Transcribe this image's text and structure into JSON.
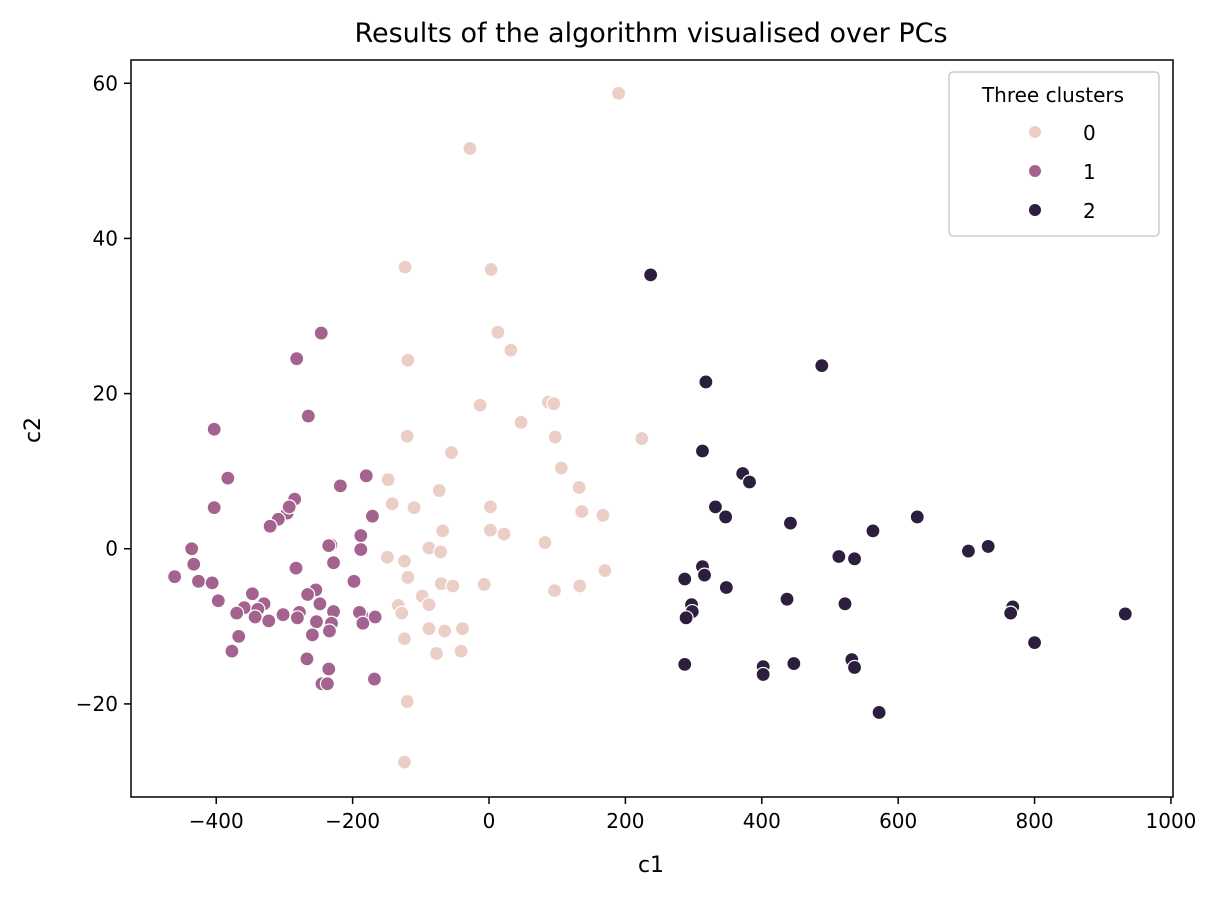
{
  "chart_data": {
    "type": "scatter",
    "title": "Results of the algorithm visualised over PCs",
    "xlabel": "c1",
    "ylabel": "c2",
    "xlim": [
      -525,
      1003
    ],
    "ylim": [
      -32,
      63
    ],
    "xticks": [
      -400,
      -200,
      0,
      200,
      400,
      600,
      800,
      1000
    ],
    "xtick_labels": [
      "−400",
      "−200",
      "0",
      "200",
      "400",
      "600",
      "800",
      "1000"
    ],
    "yticks": [
      -20,
      0,
      20,
      40,
      60
    ],
    "ytick_labels": [
      "−20",
      "0",
      "20",
      "40",
      "60"
    ],
    "grid": false,
    "legend": {
      "title": "Three clusters",
      "placement": "top-right"
    },
    "series": [
      {
        "name": "0",
        "color": "#ebcfc6",
        "points": [
          [
            190,
            58.7
          ],
          [
            -28,
            51.6
          ],
          [
            -123,
            36.3
          ],
          [
            3,
            36
          ],
          [
            13,
            27.9
          ],
          [
            32,
            25.6
          ],
          [
            -119,
            24.3
          ],
          [
            -13,
            18.5
          ],
          [
            87,
            18.9
          ],
          [
            95,
            18.7
          ],
          [
            47,
            16.3
          ],
          [
            -120,
            14.5
          ],
          [
            97,
            14.4
          ],
          [
            224,
            14.2
          ],
          [
            -55,
            12.4
          ],
          [
            106,
            10.4
          ],
          [
            -148,
            8.9
          ],
          [
            -73,
            7.5
          ],
          [
            132,
            7.9
          ],
          [
            -142,
            5.8
          ],
          [
            -110,
            5.3
          ],
          [
            2,
            5.4
          ],
          [
            136,
            4.8
          ],
          [
            167,
            4.3
          ],
          [
            -68,
            2.3
          ],
          [
            2,
            2.4
          ],
          [
            22,
            1.9
          ],
          [
            82,
            0.8
          ],
          [
            -88,
            0.1
          ],
          [
            -71,
            -0.4
          ],
          [
            -149,
            -1.1
          ],
          [
            -124,
            -1.6
          ],
          [
            170,
            -2.8
          ],
          [
            -119,
            -3.7
          ],
          [
            -70,
            -4.5
          ],
          [
            -53,
            -4.8
          ],
          [
            -7,
            -4.6
          ],
          [
            133,
            -4.8
          ],
          [
            96,
            -5.4
          ],
          [
            -98,
            -6.1
          ],
          [
            -88,
            -7.2
          ],
          [
            -133,
            -7.3
          ],
          [
            -128,
            -8.3
          ],
          [
            -88,
            -10.3
          ],
          [
            -65,
            -10.6
          ],
          [
            -39,
            -10.3
          ],
          [
            -124,
            -11.6
          ],
          [
            -77,
            -13.5
          ],
          [
            -41,
            -13.2
          ],
          [
            -120,
            -19.7
          ],
          [
            -124,
            -27.5
          ]
        ]
      },
      {
        "name": "1",
        "color": "#a4628f",
        "points": [
          [
            -246,
            27.8
          ],
          [
            -282,
            24.5
          ],
          [
            -265,
            17.1
          ],
          [
            -403,
            15.4
          ],
          [
            -383,
            9.1
          ],
          [
            -180,
            9.4
          ],
          [
            -218,
            8.1
          ],
          [
            -285,
            6.4
          ],
          [
            -403,
            5.3
          ],
          [
            -296,
            4.6
          ],
          [
            -171,
            4.2
          ],
          [
            -293,
            5.4
          ],
          [
            -309,
            3.8
          ],
          [
            -321,
            2.9
          ],
          [
            -232,
            0.5
          ],
          [
            -436,
            0.0
          ],
          [
            -235,
            0.4
          ],
          [
            -188,
            1.7
          ],
          [
            -188,
            -0.1
          ],
          [
            -433,
            -2.0
          ],
          [
            -228,
            -1.8
          ],
          [
            -283,
            -2.5
          ],
          [
            -461,
            -3.6
          ],
          [
            -426,
            -4.2
          ],
          [
            -406,
            -4.4
          ],
          [
            -198,
            -4.2
          ],
          [
            -254,
            -5.3
          ],
          [
            -266,
            -5.9
          ],
          [
            -347,
            -5.8
          ],
          [
            -359,
            -7.6
          ],
          [
            -397,
            -6.7
          ],
          [
            -330,
            -7.1
          ],
          [
            -248,
            -7.1
          ],
          [
            -370,
            -8.3
          ],
          [
            -339,
            -7.8
          ],
          [
            -343,
            -8.8
          ],
          [
            -302,
            -8.5
          ],
          [
            -278,
            -8.2
          ],
          [
            -281,
            -8.9
          ],
          [
            -228,
            -8.1
          ],
          [
            -253,
            -9.4
          ],
          [
            -186,
            -8.7
          ],
          [
            -190,
            -8.2
          ],
          [
            -185,
            -9.6
          ],
          [
            -167,
            -8.8
          ],
          [
            -231,
            -9.6
          ],
          [
            -323,
            -9.3
          ],
          [
            -259,
            -11.1
          ],
          [
            -234,
            -10.6
          ],
          [
            -367,
            -11.3
          ],
          [
            -377,
            -13.2
          ],
          [
            -267,
            -14.2
          ],
          [
            -235,
            -15.5
          ],
          [
            -168,
            -16.8
          ],
          [
            -245,
            -17.4
          ],
          [
            -237,
            -17.4
          ]
        ]
      },
      {
        "name": "2",
        "color": "#2c1e3d",
        "points": [
          [
            237,
            35.3
          ],
          [
            488,
            23.6
          ],
          [
            318,
            21.5
          ],
          [
            313,
            12.6
          ],
          [
            372,
            9.7
          ],
          [
            382,
            8.6
          ],
          [
            332,
            5.4
          ],
          [
            347,
            4.1
          ],
          [
            442,
            3.3
          ],
          [
            628,
            4.1
          ],
          [
            563,
            2.3
          ],
          [
            732,
            0.3
          ],
          [
            703,
            -0.3
          ],
          [
            513,
            -1.0
          ],
          [
            536,
            -1.3
          ],
          [
            313,
            -2.3
          ],
          [
            316,
            -3.4
          ],
          [
            287,
            -3.9
          ],
          [
            348,
            -5.0
          ],
          [
            297,
            -7.2
          ],
          [
            437,
            -6.5
          ],
          [
            522,
            -7.1
          ],
          [
            768,
            -7.5
          ],
          [
            298,
            -8.1
          ],
          [
            765,
            -8.3
          ],
          [
            933,
            -8.4
          ],
          [
            289,
            -8.9
          ],
          [
            800,
            -12.1
          ],
          [
            532,
            -14.3
          ],
          [
            536,
            -15.3
          ],
          [
            287,
            -14.9
          ],
          [
            447,
            -14.8
          ],
          [
            402,
            -15.2
          ],
          [
            402,
            -16.2
          ],
          [
            572,
            -21.1
          ]
        ]
      }
    ]
  }
}
